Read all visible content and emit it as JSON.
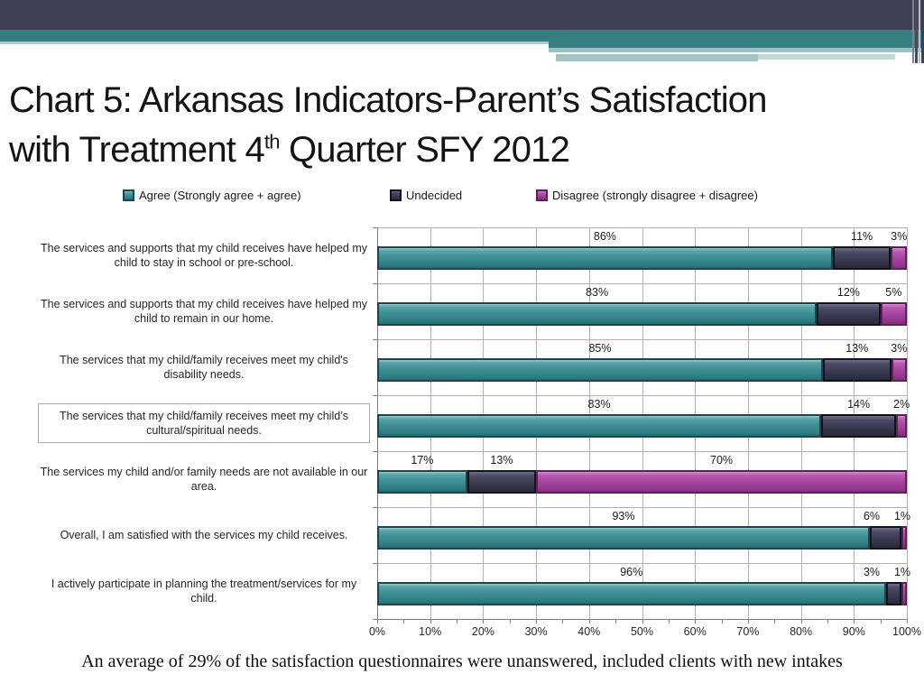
{
  "slide": {
    "title_line1": "Chart 5: Arkansas Indicators-Parent’s Satisfaction",
    "title_line2_pre": "with Treatment 4",
    "title_sup": "th",
    "title_line2_post": " Quarter SFY 2012",
    "footnote": "An average of 29% of the satisfaction questionnaires were unanswered, included clients with new intakes"
  },
  "colors": {
    "banner_navy": "#3e4153",
    "banner_teal": "#377e82",
    "banner_pale_teal": "#9dc1c3",
    "agree_fill": "#3f9095",
    "agree_border": "#21454f",
    "undecided_fill": "#38384e",
    "undecided_border": "#13131d",
    "disagree_fill": "#a3439e",
    "disagree_border": "#5c2158",
    "gridline": "#b2b2b2",
    "axis": "#7f7f7f"
  },
  "chart_data": {
    "type": "bar",
    "orientation": "horizontal-stacked",
    "title": "",
    "xlabel": "",
    "ylabel": "",
    "xlim": [
      0,
      100
    ],
    "grid": true,
    "legend_position": "top",
    "categories": [
      "The services and supports that my child receives have helped my child to stay in school or pre-school.",
      "The services and supports that my child receives have helped my child to remain in our home.",
      "The services that my child/family receives meet my child's disability needs.",
      "The services that my child/family receives meet my child’s cultural/spiritual needs.",
      "The services my child and/or family needs are not available in our area.",
      "Overall, I am satisfied with the services my child receives.",
      "I actively participate in planning the treatment/services for my child."
    ],
    "highlighted_category_index": 3,
    "series": [
      {
        "name": "Agree (Strongly agree + agree)",
        "key": "agree",
        "values": [
          86,
          83,
          85,
          83,
          17,
          93,
          96
        ]
      },
      {
        "name": "Undecided",
        "key": "undecided",
        "values": [
          11,
          12,
          13,
          14,
          13,
          6,
          3
        ]
      },
      {
        "name": "Disagree (strongly disagree + disagree)",
        "key": "disagree",
        "values": [
          3,
          5,
          3,
          2,
          70,
          1,
          1
        ]
      }
    ],
    "data_label_suffix": "%",
    "x_ticks": [
      "0%",
      "10%",
      "20%",
      "30%",
      "40%",
      "50%",
      "60%",
      "70%",
      "80%",
      "90%",
      "100%"
    ]
  }
}
